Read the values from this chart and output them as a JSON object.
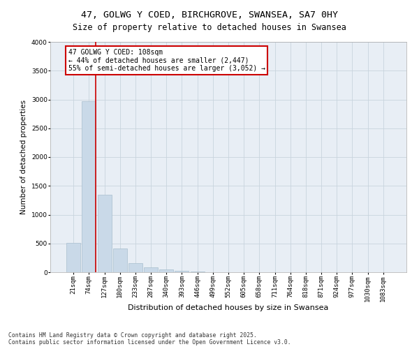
{
  "title_line1": "47, GOLWG Y COED, BIRCHGROVE, SWANSEA, SA7 0HY",
  "title_line2": "Size of property relative to detached houses in Swansea",
  "xlabel": "Distribution of detached houses by size in Swansea",
  "ylabel": "Number of detached properties",
  "categories": [
    "21sqm",
    "74sqm",
    "127sqm",
    "180sqm",
    "233sqm",
    "287sqm",
    "340sqm",
    "393sqm",
    "446sqm",
    "499sqm",
    "552sqm",
    "605sqm",
    "658sqm",
    "711sqm",
    "764sqm",
    "818sqm",
    "871sqm",
    "924sqm",
    "977sqm",
    "1030sqm",
    "1083sqm"
  ],
  "bar_values": [
    510,
    2970,
    1350,
    410,
    155,
    80,
    45,
    28,
    18,
    0,
    0,
    0,
    0,
    0,
    0,
    0,
    0,
    0,
    0,
    0,
    0
  ],
  "bar_color": "#c9d9e8",
  "bar_edge_color": "#a8bece",
  "ylim": [
    0,
    4000
  ],
  "yticks": [
    0,
    500,
    1000,
    1500,
    2000,
    2500,
    3000,
    3500,
    4000
  ],
  "grid_color": "#c8d4de",
  "background_color": "#e8eef5",
  "vline_color": "#cc0000",
  "annotation_text": "47 GOLWG Y COED: 108sqm\n← 44% of detached houses are smaller (2,447)\n55% of semi-detached houses are larger (3,052) →",
  "annotation_box_color": "white",
  "annotation_box_edge_color": "#cc0000",
  "footer_text": "Contains HM Land Registry data © Crown copyright and database right 2025.\nContains public sector information licensed under the Open Government Licence v3.0.",
  "title_fontsize": 9.5,
  "subtitle_fontsize": 8.5,
  "ylabel_fontsize": 7.5,
  "xlabel_fontsize": 8,
  "tick_fontsize": 6.5,
  "annotation_fontsize": 7,
  "footer_fontsize": 5.8
}
